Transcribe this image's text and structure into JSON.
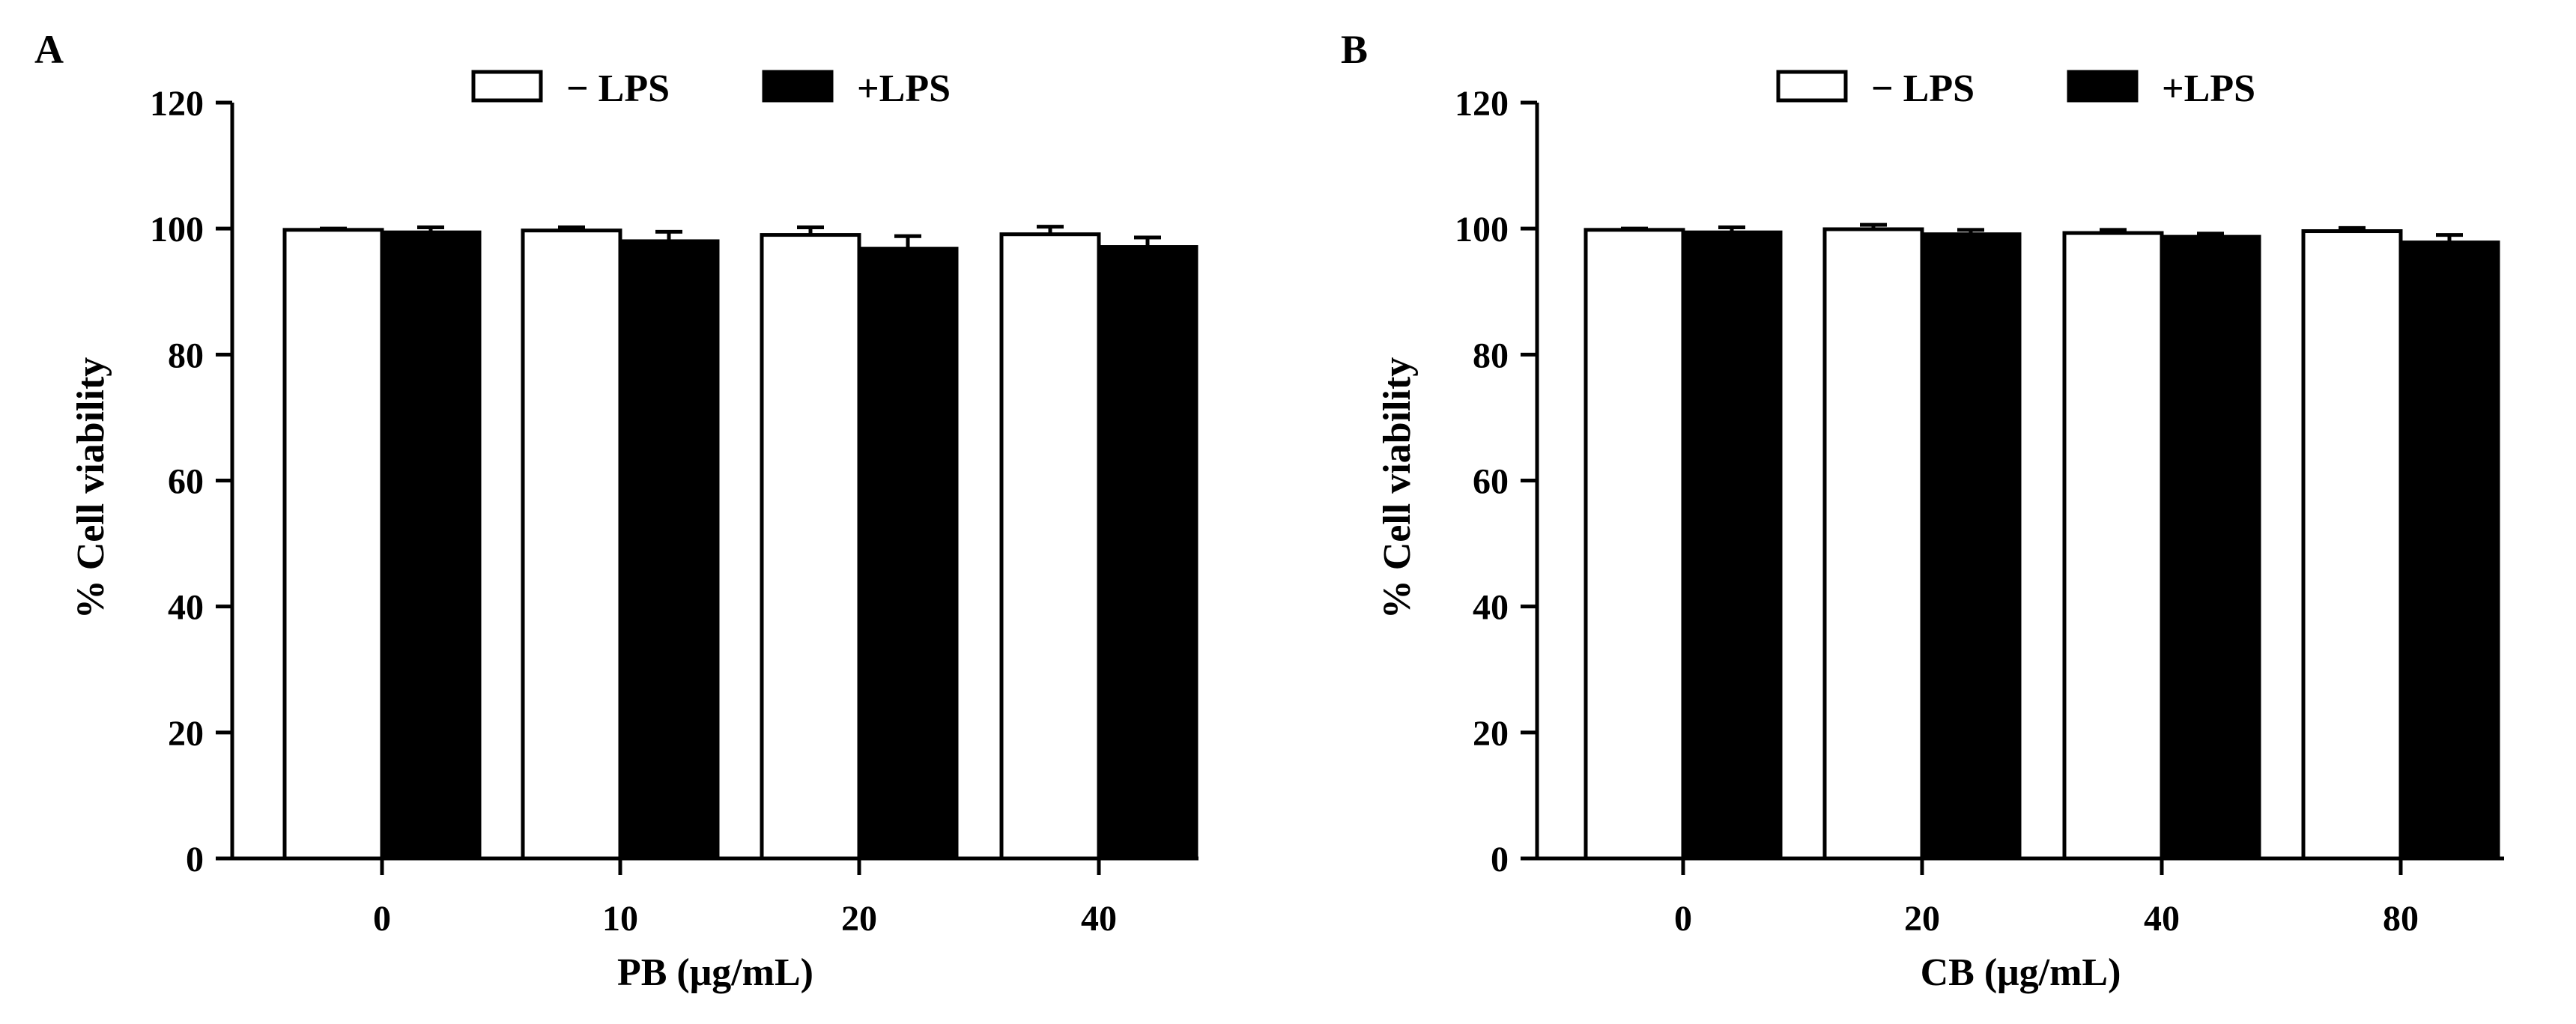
{
  "chart_data": [
    {
      "type": "bar",
      "panel_label": "A",
      "xlabel": "PB (μg/mL)",
      "ylabel": "% Cell viability",
      "categories": [
        "0",
        "10",
        "20",
        "40"
      ],
      "ylim": [
        0,
        120
      ],
      "yticks": [
        0,
        20,
        40,
        60,
        80,
        100,
        120
      ],
      "legend_position": "top-center",
      "grid": false,
      "series": [
        {
          "name": "− LPS",
          "color": "#ffffff",
          "values": [
            99.8,
            99.7,
            99.0,
            99.1
          ],
          "errors": [
            0.2,
            0.5,
            1.2,
            1.2
          ]
        },
        {
          "name": "+LPS",
          "color": "#000000",
          "values": [
            99.4,
            98.0,
            96.8,
            97.1
          ],
          "errors": [
            0.8,
            1.5,
            2.0,
            1.5
          ]
        }
      ]
    },
    {
      "type": "bar",
      "panel_label": "B",
      "xlabel": "CB (μg/mL)",
      "ylabel": "% Cell viability",
      "categories": [
        "0",
        "20",
        "40",
        "80"
      ],
      "ylim": [
        0,
        120
      ],
      "yticks": [
        0,
        20,
        40,
        60,
        80,
        100,
        120
      ],
      "legend_position": "top-center",
      "grid": false,
      "series": [
        {
          "name": "− LPS",
          "color": "#ffffff",
          "values": [
            99.8,
            99.9,
            99.3,
            99.6
          ],
          "errors": [
            0.2,
            0.7,
            0.5,
            0.5
          ]
        },
        {
          "name": "+LPS",
          "color": "#000000",
          "values": [
            99.4,
            99.1,
            98.7,
            97.8
          ],
          "errors": [
            0.8,
            0.7,
            0.5,
            1.2
          ]
        }
      ]
    }
  ]
}
